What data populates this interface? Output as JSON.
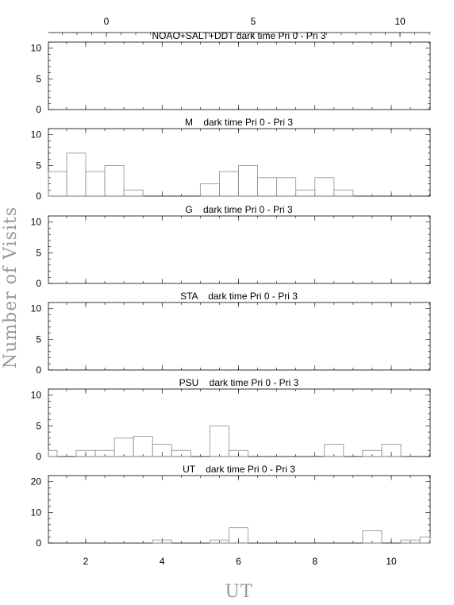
{
  "figure": {
    "ylabel": "Number of Visits",
    "xlabel": "UT",
    "top_axis_ticks": [
      "0",
      "5",
      "10"
    ],
    "bottom_axis_ticks": [
      "2",
      "4",
      "6",
      "8",
      "10"
    ]
  },
  "chart_data": [
    {
      "type": "bar",
      "title": "NOAO+SALT+DDT dark time Pri 0 - Pri 3",
      "ylim": [
        0,
        11
      ],
      "y_ticks": [
        "0",
        "5",
        "10"
      ],
      "x": [],
      "values": []
    },
    {
      "type": "bar",
      "title": "M    dark time Pri 0 - Pri 3",
      "ylim": [
        0,
        11
      ],
      "y_ticks": [
        "0",
        "5",
        "10"
      ],
      "x": [
        1.25,
        1.75,
        2.25,
        2.75,
        3.25,
        3.75,
        4.25,
        4.75,
        5.25,
        5.75,
        6.25,
        6.75,
        7.25,
        7.75,
        8.25,
        8.75,
        9.25,
        9.75,
        10.25,
        10.75
      ],
      "values": [
        4,
        7,
        4,
        5,
        1,
        0,
        0,
        0,
        2,
        4,
        5,
        3,
        3,
        1,
        3,
        1,
        0,
        0,
        0,
        0
      ]
    },
    {
      "type": "bar",
      "title": "G    dark time Pri 0 - Pri 3",
      "ylim": [
        0,
        11
      ],
      "y_ticks": [
        "0",
        "5",
        "10"
      ],
      "x": [],
      "values": []
    },
    {
      "type": "bar",
      "title": "STA    dark time Pri 0 - Pri 3",
      "ylim": [
        0,
        11
      ],
      "y_ticks": [
        "0",
        "5",
        "10"
      ],
      "x": [],
      "values": []
    },
    {
      "type": "bar",
      "title": "PSU    dark time Pri 0 - Pri 3",
      "ylim": [
        0,
        11
      ],
      "y_ticks": [
        "0",
        "5",
        "10"
      ],
      "x": [
        1.0,
        1.5,
        2.0,
        2.5,
        3.0,
        3.5,
        4.0,
        4.5,
        5.0,
        5.5,
        6.0,
        6.5,
        7.0,
        7.5,
        8.0,
        8.5,
        9.0,
        9.5,
        10.0,
        10.5
      ],
      "values": [
        1,
        0,
        1,
        1,
        3,
        3.3,
        2,
        1,
        0,
        5,
        1,
        0,
        0,
        0,
        0,
        2,
        0,
        1,
        2,
        0
      ]
    },
    {
      "type": "bar",
      "title": "UT    dark time Pri 0 - Pri 3",
      "ylim": [
        0,
        22
      ],
      "y_ticks": [
        "0",
        "10",
        "20"
      ],
      "x": [
        1.0,
        1.5,
        2.0,
        2.5,
        3.0,
        3.5,
        4.0,
        4.5,
        5.0,
        5.5,
        6.0,
        6.5,
        7.0,
        7.5,
        8.0,
        8.5,
        9.0,
        9.5,
        10.0,
        10.5,
        11.0
      ],
      "values": [
        0,
        0,
        0,
        0,
        0,
        0,
        1,
        0,
        0,
        1,
        5,
        0,
        0,
        0,
        0,
        0,
        0,
        4,
        0,
        1,
        2
      ]
    }
  ]
}
